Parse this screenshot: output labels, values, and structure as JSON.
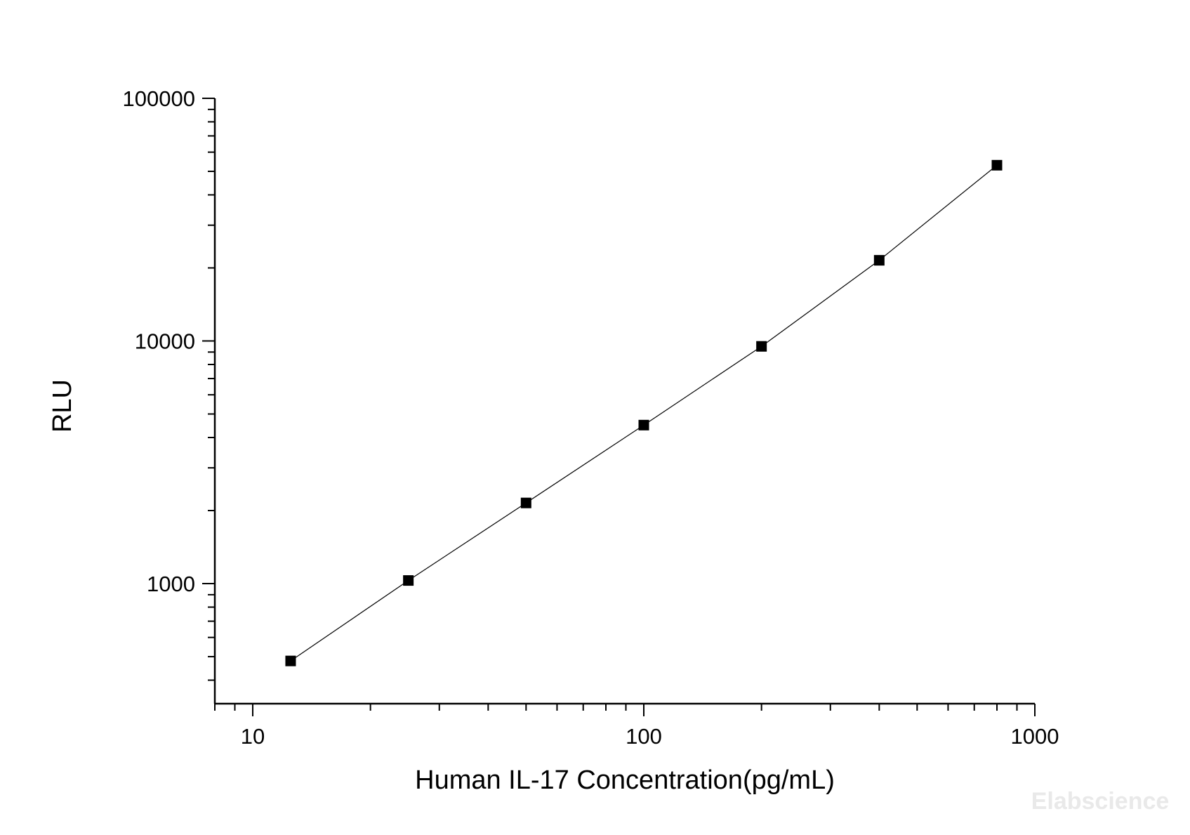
{
  "chart_data": {
    "type": "line",
    "xlabel": "Human IL-17 Concentration(pg/mL)",
    "ylabel": "RLU",
    "x_scale": "log",
    "y_scale": "log",
    "xlim": [
      8,
      1000
    ],
    "ylim": [
      320,
      100000
    ],
    "x_ticks": [
      {
        "value": 10,
        "label": "10"
      },
      {
        "value": 100,
        "label": "100"
      },
      {
        "value": 1000,
        "label": "1000"
      }
    ],
    "y_ticks": [
      {
        "value": 1000,
        "label": "1000"
      },
      {
        "value": 10000,
        "label": "10000"
      },
      {
        "value": 100000,
        "label": "100000"
      }
    ],
    "grid": false,
    "series": [
      {
        "marker": "square",
        "color": "#000000",
        "points": [
          {
            "x": 12.5,
            "y": 480
          },
          {
            "x": 25,
            "y": 1030
          },
          {
            "x": 50,
            "y": 2150
          },
          {
            "x": 100,
            "y": 4500
          },
          {
            "x": 200,
            "y": 9500
          },
          {
            "x": 400,
            "y": 21500
          },
          {
            "x": 800,
            "y": 53000
          }
        ]
      }
    ],
    "watermark": "Elabscience"
  }
}
